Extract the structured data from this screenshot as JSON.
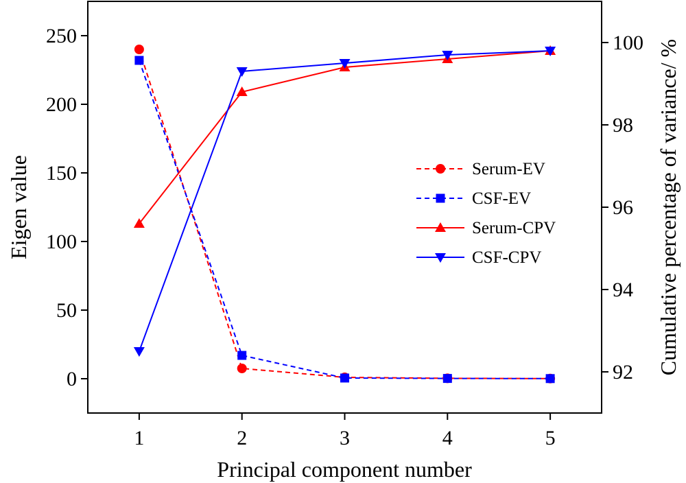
{
  "chart_data": {
    "type": "line",
    "x": [
      1,
      2,
      3,
      4,
      5
    ],
    "xlabel": "Principal component number",
    "ylabel": "Eigen value",
    "y2label": "Cumulative percentage of variance/ %",
    "xlim": [
      0.5,
      5.5
    ],
    "ylim": [
      -25,
      275
    ],
    "y2lim": [
      91,
      101
    ],
    "xticks": [
      "1",
      "2",
      "3",
      "4",
      "5"
    ],
    "yticks": [
      "0",
      "50",
      "100",
      "150",
      "200",
      "250"
    ],
    "y2ticks": [
      "92",
      "94",
      "96",
      "98",
      "100"
    ],
    "grid": false,
    "legend_position": "center-right",
    "series": [
      {
        "name": "Serum-EV",
        "axis": "left",
        "style": "dashed",
        "marker": "circle",
        "color": "#ff0000",
        "values": [
          240,
          7.5,
          1.0,
          0.3,
          0.1
        ]
      },
      {
        "name": "CSF-EV",
        "axis": "left",
        "style": "dashed",
        "marker": "square",
        "color": "#0000ff",
        "values": [
          232,
          17,
          0.5,
          0.2,
          0.1
        ]
      },
      {
        "name": "Serum-CPV",
        "axis": "right",
        "style": "solid",
        "marker": "triangle-up",
        "color": "#ff0000",
        "values": [
          95.6,
          98.8,
          99.4,
          99.6,
          99.8
        ]
      },
      {
        "name": "CSF-CPV",
        "axis": "right",
        "style": "solid",
        "marker": "triangle-down",
        "color": "#0000ff",
        "values": [
          92.5,
          99.3,
          99.5,
          99.7,
          99.8
        ]
      }
    ]
  }
}
